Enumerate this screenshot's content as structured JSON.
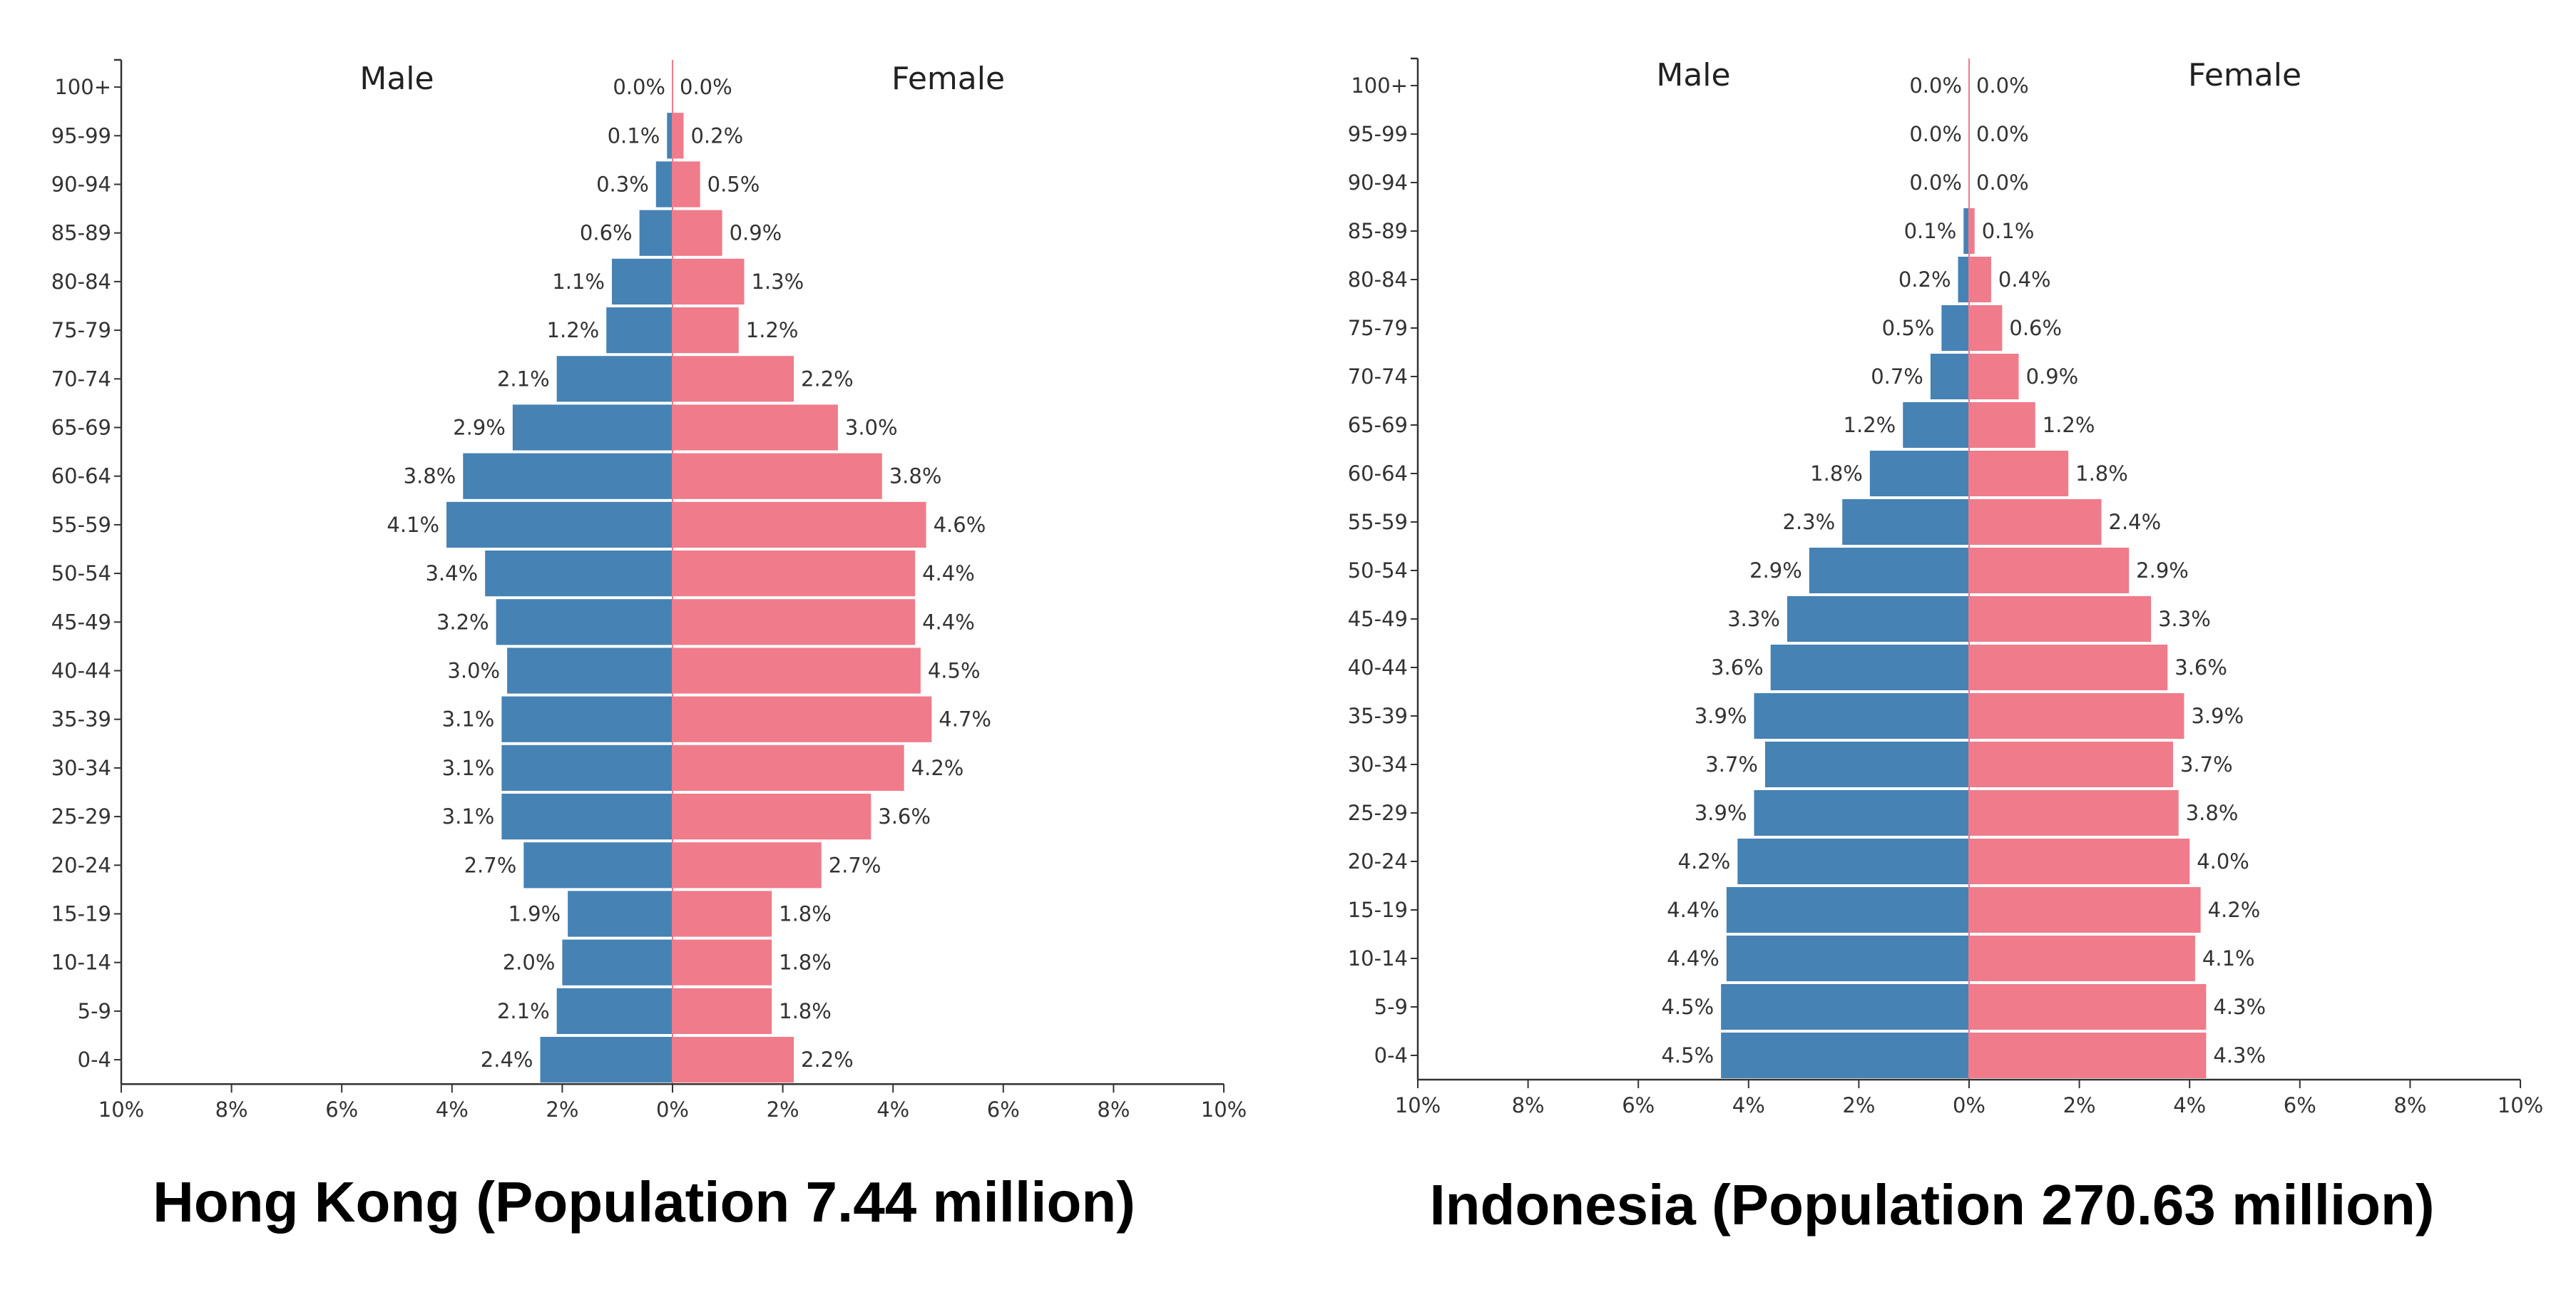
{
  "colors": {
    "male": "#4682b4",
    "female": "#f07b8a",
    "axis": "#333333",
    "text": "#333333"
  },
  "chart_data": [
    {
      "type": "bar",
      "subtype": "population-pyramid",
      "title": "Hong Kong (Population 7.44 million)",
      "male_label": "Male",
      "female_label": "Female",
      "age_groups": [
        "100+",
        "95-99",
        "90-94",
        "85-89",
        "80-84",
        "75-79",
        "70-74",
        "65-69",
        "60-64",
        "55-59",
        "50-54",
        "45-49",
        "40-44",
        "35-39",
        "30-34",
        "25-29",
        "20-24",
        "15-19",
        "10-14",
        "5-9",
        "0-4"
      ],
      "male_values": [
        0.0,
        0.1,
        0.3,
        0.6,
        1.1,
        1.2,
        2.1,
        2.9,
        3.8,
        4.1,
        3.4,
        3.2,
        3.0,
        3.1,
        3.1,
        3.1,
        2.7,
        1.9,
        2.0,
        2.1,
        2.4
      ],
      "female_values": [
        0.0,
        0.2,
        0.5,
        0.9,
        1.3,
        1.2,
        2.2,
        3.0,
        3.8,
        4.6,
        4.4,
        4.4,
        4.5,
        4.7,
        4.2,
        3.6,
        2.7,
        1.8,
        1.8,
        1.8,
        2.2
      ],
      "male_labels": [
        "0.0%",
        "0.1%",
        "0.3%",
        "0.6%",
        "1.1%",
        "1.2%",
        "2.1%",
        "2.9%",
        "3.8%",
        "4.1%",
        "3.4%",
        "3.2%",
        "3.0%",
        "3.1%",
        "3.1%",
        "3.1%",
        "2.7%",
        "1.9%",
        "2.0%",
        "2.1%",
        "2.4%"
      ],
      "female_labels": [
        "0.0%",
        "0.2%",
        "0.5%",
        "0.9%",
        "1.3%",
        "1.2%",
        "2.2%",
        "3.0%",
        "3.8%",
        "4.6%",
        "4.4%",
        "4.4%",
        "4.5%",
        "4.7%",
        "4.2%",
        "3.6%",
        "2.7%",
        "1.8%",
        "1.8%",
        "1.8%",
        "2.2%"
      ],
      "x_ticks": [
        -10,
        -8,
        -6,
        -4,
        -2,
        0,
        2,
        4,
        6,
        8,
        10
      ],
      "x_tick_labels": [
        "10%",
        "8%",
        "6%",
        "4%",
        "2%",
        "0%",
        "2%",
        "4%",
        "6%",
        "8%",
        "10%"
      ],
      "xlim": [
        -10,
        10
      ],
      "legend": "none"
    },
    {
      "type": "bar",
      "subtype": "population-pyramid",
      "title": "Indonesia (Population 270.63 million)",
      "male_label": "Male",
      "female_label": "Female",
      "age_groups": [
        "100+",
        "95-99",
        "90-94",
        "85-89",
        "80-84",
        "75-79",
        "70-74",
        "65-69",
        "60-64",
        "55-59",
        "50-54",
        "45-49",
        "40-44",
        "35-39",
        "30-34",
        "25-29",
        "20-24",
        "15-19",
        "10-14",
        "5-9",
        "0-4"
      ],
      "male_values": [
        0.0,
        0.0,
        0.0,
        0.1,
        0.2,
        0.5,
        0.7,
        1.2,
        1.8,
        2.3,
        2.9,
        3.3,
        3.6,
        3.9,
        3.7,
        3.9,
        4.2,
        4.4,
        4.4,
        4.5,
        4.5
      ],
      "female_values": [
        0.0,
        0.0,
        0.0,
        0.1,
        0.4,
        0.6,
        0.9,
        1.2,
        1.8,
        2.4,
        2.9,
        3.3,
        3.6,
        3.9,
        3.7,
        3.8,
        4.0,
        4.2,
        4.1,
        4.3,
        4.3
      ],
      "male_labels": [
        "0.0%",
        "0.0%",
        "0.0%",
        "0.1%",
        "0.2%",
        "0.5%",
        "0.7%",
        "1.2%",
        "1.8%",
        "2.3%",
        "2.9%",
        "3.3%",
        "3.6%",
        "3.9%",
        "3.7%",
        "3.9%",
        "4.2%",
        "4.4%",
        "4.4%",
        "4.5%",
        "4.5%"
      ],
      "female_labels": [
        "0.0%",
        "0.0%",
        "0.0%",
        "0.1%",
        "0.4%",
        "0.6%",
        "0.9%",
        "1.2%",
        "1.8%",
        "2.4%",
        "2.9%",
        "3.3%",
        "3.6%",
        "3.9%",
        "3.7%",
        "3.8%",
        "4.0%",
        "4.2%",
        "4.1%",
        "4.3%",
        "4.3%"
      ],
      "x_ticks": [
        -10,
        -8,
        -6,
        -4,
        -2,
        0,
        2,
        4,
        6,
        8,
        10
      ],
      "x_tick_labels": [
        "10%",
        "8%",
        "6%",
        "4%",
        "2%",
        "0%",
        "2%",
        "4%",
        "6%",
        "8%",
        "10%"
      ],
      "xlim": [
        -10,
        10
      ],
      "legend": "none"
    }
  ]
}
